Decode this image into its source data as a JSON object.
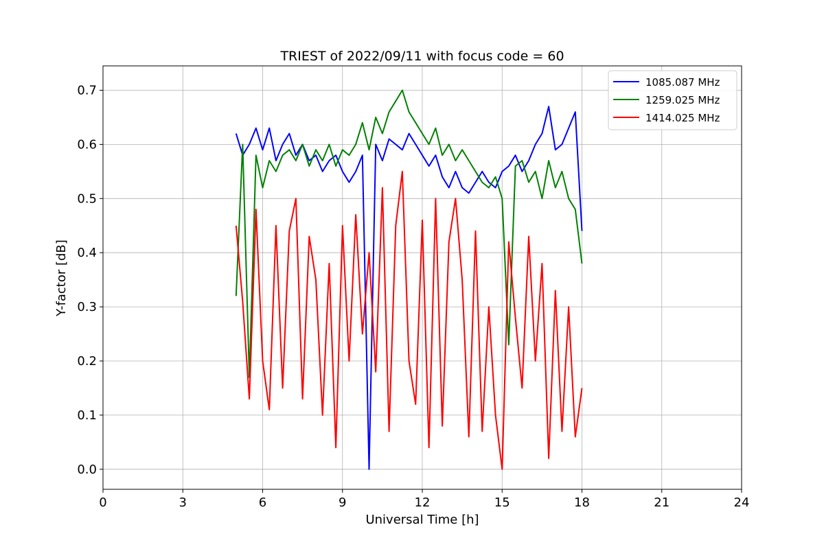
{
  "chart_data": {
    "type": "line",
    "title": "TRIEST of 2022/09/11 with focus code = 60",
    "xlabel": "Universal Time [h]",
    "ylabel": "Y-factor [dB]",
    "xlim": [
      0,
      24
    ],
    "ylim": [
      -0.037,
      0.745
    ],
    "xticks": [
      0,
      3,
      6,
      9,
      12,
      15,
      18,
      21,
      24
    ],
    "yticks": [
      0.0,
      0.1,
      0.2,
      0.3,
      0.4,
      0.5,
      0.6,
      0.7
    ],
    "grid": true,
    "legend_position": "top-right",
    "series": [
      {
        "name": "1085.087 MHz",
        "color": "#0000ff",
        "x": [
          5.0,
          5.25,
          5.5,
          5.75,
          6.0,
          6.25,
          6.5,
          6.75,
          7.0,
          7.25,
          7.5,
          7.75,
          8.0,
          8.25,
          8.5,
          8.75,
          9.0,
          9.25,
          9.5,
          9.75,
          10.0,
          10.25,
          10.5,
          10.75,
          11.0,
          11.25,
          11.5,
          11.75,
          12.0,
          12.25,
          12.5,
          12.75,
          13.0,
          13.25,
          13.5,
          13.75,
          14.0,
          14.25,
          14.5,
          14.75,
          15.0,
          15.25,
          15.5,
          15.75,
          16.0,
          16.25,
          16.5,
          16.75,
          17.0,
          17.25,
          17.5,
          17.75,
          18.0
        ],
        "y": [
          0.62,
          0.58,
          0.6,
          0.63,
          0.59,
          0.63,
          0.57,
          0.6,
          0.62,
          0.58,
          0.6,
          0.57,
          0.58,
          0.55,
          0.57,
          0.58,
          0.55,
          0.53,
          0.55,
          0.58,
          0.0,
          0.6,
          0.57,
          0.61,
          0.6,
          0.59,
          0.62,
          0.6,
          0.58,
          0.56,
          0.58,
          0.54,
          0.52,
          0.55,
          0.52,
          0.51,
          0.53,
          0.55,
          0.53,
          0.52,
          0.55,
          0.56,
          0.58,
          0.55,
          0.57,
          0.6,
          0.62,
          0.67,
          0.59,
          0.6,
          0.63,
          0.66,
          0.44
        ]
      },
      {
        "name": "1259.025 MHz",
        "color": "#008000",
        "x": [
          5.0,
          5.25,
          5.5,
          5.75,
          6.0,
          6.25,
          6.5,
          6.75,
          7.0,
          7.25,
          7.5,
          7.75,
          8.0,
          8.25,
          8.5,
          8.75,
          9.0,
          9.25,
          9.5,
          9.75,
          10.0,
          10.25,
          10.5,
          10.75,
          11.0,
          11.25,
          11.5,
          11.75,
          12.0,
          12.25,
          12.5,
          12.75,
          13.0,
          13.25,
          13.5,
          13.75,
          14.0,
          14.25,
          14.5,
          14.75,
          15.0,
          15.25,
          15.5,
          15.75,
          16.0,
          16.25,
          16.5,
          16.75,
          17.0,
          17.25,
          17.5,
          17.75,
          18.0
        ],
        "y": [
          0.32,
          0.6,
          0.17,
          0.58,
          0.52,
          0.57,
          0.55,
          0.58,
          0.59,
          0.57,
          0.6,
          0.56,
          0.59,
          0.57,
          0.6,
          0.56,
          0.59,
          0.58,
          0.6,
          0.64,
          0.59,
          0.65,
          0.62,
          0.66,
          0.68,
          0.7,
          0.66,
          0.64,
          0.62,
          0.6,
          0.63,
          0.58,
          0.6,
          0.57,
          0.59,
          0.57,
          0.55,
          0.53,
          0.52,
          0.54,
          0.5,
          0.23,
          0.56,
          0.57,
          0.53,
          0.55,
          0.5,
          0.57,
          0.52,
          0.55,
          0.5,
          0.48,
          0.38
        ]
      },
      {
        "name": "1414.025 MHz",
        "color": "#ff0000",
        "x": [
          5.0,
          5.25,
          5.5,
          5.75,
          6.0,
          6.25,
          6.5,
          6.75,
          7.0,
          7.25,
          7.5,
          7.75,
          8.0,
          8.25,
          8.5,
          8.75,
          9.0,
          9.25,
          9.5,
          9.75,
          10.0,
          10.25,
          10.5,
          10.75,
          11.0,
          11.25,
          11.5,
          11.75,
          12.0,
          12.25,
          12.5,
          12.75,
          13.0,
          13.25,
          13.5,
          13.75,
          14.0,
          14.25,
          14.5,
          14.75,
          15.0,
          15.25,
          15.5,
          15.75,
          16.0,
          16.25,
          16.5,
          16.75,
          17.0,
          17.25,
          17.5,
          17.75,
          18.0
        ],
        "y": [
          0.45,
          0.31,
          0.13,
          0.48,
          0.2,
          0.11,
          0.45,
          0.15,
          0.44,
          0.5,
          0.13,
          0.43,
          0.35,
          0.1,
          0.38,
          0.04,
          0.45,
          0.2,
          0.47,
          0.25,
          0.4,
          0.18,
          0.52,
          0.07,
          0.45,
          0.55,
          0.2,
          0.12,
          0.46,
          0.04,
          0.5,
          0.08,
          0.42,
          0.5,
          0.35,
          0.06,
          0.44,
          0.07,
          0.3,
          0.1,
          0.0,
          0.42,
          0.28,
          0.15,
          0.43,
          0.2,
          0.38,
          0.02,
          0.33,
          0.07,
          0.3,
          0.06,
          0.15
        ]
      }
    ]
  }
}
